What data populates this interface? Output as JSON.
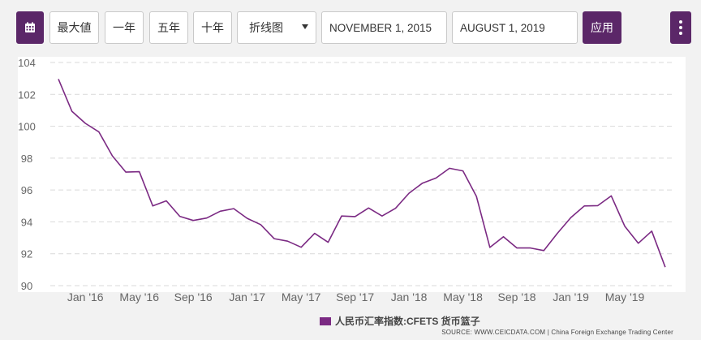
{
  "toolbar": {
    "calendar_icon": "calendar-icon",
    "max_label": "最大値",
    "one_year_label": "一年",
    "five_year_label": "五年",
    "ten_year_label": "十年",
    "chart_type_selected": "折线图",
    "start_date": "NOVEMBER 1, 2015",
    "end_date": "AUGUST 1, 2019",
    "apply_label": "应用",
    "more_icon": "vertical-dots-icon"
  },
  "colors": {
    "accent": "#5b2768",
    "series_line": "#7b2a83",
    "background": "#f2f2f2"
  },
  "chart_data": {
    "type": "line",
    "title": "",
    "xlabel": "",
    "ylabel": "",
    "ylim": [
      90,
      104
    ],
    "yticks": [
      "90",
      "92",
      "94",
      "96",
      "98",
      "100",
      "102",
      "104"
    ],
    "xticks": [
      "Jan '16",
      "May '16",
      "Sep '16",
      "Jan '17",
      "May '17",
      "Sep '17",
      "Jan '18",
      "May '18",
      "Sep '18",
      "Jan '19",
      "May '19"
    ],
    "grid": true,
    "legend_position": "bottom",
    "x": [
      "2015-11",
      "2015-12",
      "2016-01",
      "2016-02",
      "2016-03",
      "2016-04",
      "2016-05",
      "2016-06",
      "2016-07",
      "2016-08",
      "2016-09",
      "2016-10",
      "2016-11",
      "2016-12",
      "2017-01",
      "2017-02",
      "2017-03",
      "2017-04",
      "2017-05",
      "2017-06",
      "2017-07",
      "2017-08",
      "2017-09",
      "2017-10",
      "2017-11",
      "2017-12",
      "2018-01",
      "2018-02",
      "2018-03",
      "2018-04",
      "2018-05",
      "2018-06",
      "2018-07",
      "2018-08",
      "2018-09",
      "2018-10",
      "2018-11",
      "2018-12",
      "2019-01",
      "2019-02",
      "2019-03",
      "2019-04",
      "2019-05",
      "2019-06",
      "2019-07",
      "2019-08"
    ],
    "series": [
      {
        "name": "人民币汇率指数:CFETS 货币篮子",
        "values": [
          102.96,
          100.94,
          100.18,
          99.64,
          98.14,
          97.12,
          97.15,
          95.0,
          95.32,
          94.35,
          94.09,
          94.24,
          94.67,
          94.83,
          94.22,
          93.83,
          92.95,
          92.79,
          92.41,
          93.28,
          92.72,
          94.37,
          94.33,
          94.87,
          94.37,
          94.85,
          95.8,
          96.43,
          96.75,
          97.36,
          97.2,
          95.6,
          92.4,
          93.07,
          92.36,
          92.36,
          92.2,
          93.28,
          94.27,
          95.0,
          95.02,
          95.63,
          93.73,
          92.66,
          93.42,
          91.16
        ]
      }
    ],
    "source": "SOURCE: WWW.CEICDATA.COM | China Foreign Exchange Trading Center"
  }
}
